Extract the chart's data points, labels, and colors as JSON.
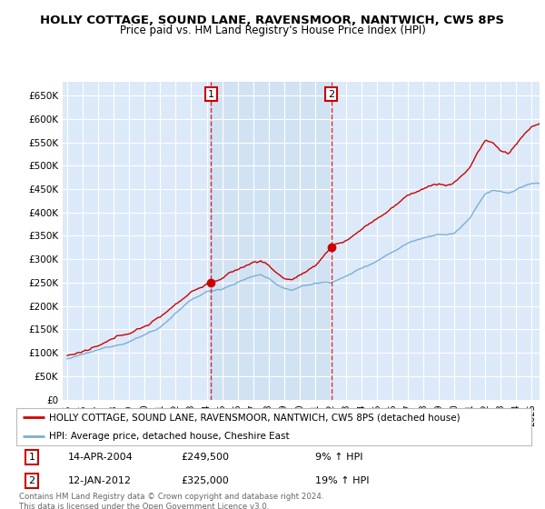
{
  "title": "HOLLY COTTAGE, SOUND LANE, RAVENSMOOR, NANTWICH, CW5 8PS",
  "subtitle": "Price paid vs. HM Land Registry's House Price Index (HPI)",
  "ylabel_ticks": [
    "£0",
    "£50K",
    "£100K",
    "£150K",
    "£200K",
    "£250K",
    "£300K",
    "£350K",
    "£400K",
    "£450K",
    "£500K",
    "£550K",
    "£600K",
    "£650K"
  ],
  "ytick_vals": [
    0,
    50000,
    100000,
    150000,
    200000,
    250000,
    300000,
    350000,
    400000,
    450000,
    500000,
    550000,
    600000,
    650000
  ],
  "ylim": [
    0,
    680000
  ],
  "xlim_start": 1994.7,
  "xlim_end": 2025.5,
  "xticks": [
    1995,
    1996,
    1997,
    1998,
    1999,
    2000,
    2001,
    2002,
    2003,
    2004,
    2005,
    2006,
    2007,
    2008,
    2009,
    2010,
    2011,
    2012,
    2013,
    2014,
    2015,
    2016,
    2017,
    2018,
    2019,
    2020,
    2021,
    2022,
    2023,
    2024,
    2025
  ],
  "bg_color": "#dce9f8",
  "shade_color": "#d0e4f5",
  "red_color": "#cc0000",
  "blue_color": "#7ab0d4",
  "marker1_x": 2004.28,
  "marker1_y": 249500,
  "marker2_x": 2012.04,
  "marker2_y": 325000,
  "vline1_x": 2004.28,
  "vline2_x": 2012.04,
  "legend_red_label": "HOLLY COTTAGE, SOUND LANE, RAVENSMOOR, NANTWICH, CW5 8PS (detached house)",
  "legend_blue_label": "HPI: Average price, detached house, Cheshire East",
  "table_row1": [
    "1",
    "14-APR-2004",
    "£249,500",
    "9% ↑ HPI"
  ],
  "table_row2": [
    "2",
    "12-JAN-2012",
    "£325,000",
    "19% ↑ HPI"
  ],
  "footer": "Contains HM Land Registry data © Crown copyright and database right 2024.\nThis data is licensed under the Open Government Licence v3.0."
}
